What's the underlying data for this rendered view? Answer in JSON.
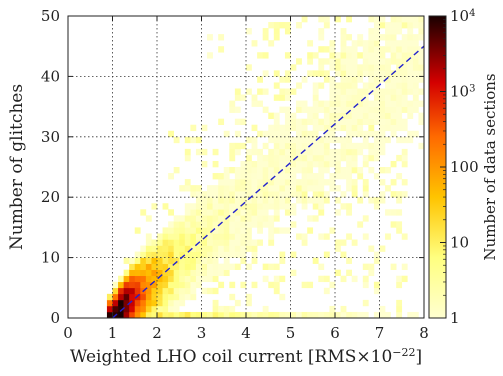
{
  "chart_data": {
    "type": "heatmap",
    "title": "",
    "xlabel": "Weighted LHO coil current [RMS×10",
    "xlabel_exponent": "−22",
    "xlabel_suffix": "]",
    "ylabel": "Number of glitches",
    "xlim": [
      0,
      8
    ],
    "ylim": [
      0,
      50
    ],
    "x_ticks": [
      "0",
      "1",
      "2",
      "3",
      "4",
      "5",
      "6",
      "7",
      "8"
    ],
    "y_ticks": [
      "0",
      "10",
      "20",
      "30",
      "40",
      "50"
    ],
    "grid": true,
    "colorbar": {
      "label": "Number of data sections",
      "scale": "log",
      "range": [
        1,
        10000
      ],
      "tick_labels": [
        {
          "value": 1,
          "base": "1",
          "exp": ""
        },
        {
          "value": 10,
          "base": "10",
          "exp": ""
        },
        {
          "value": 100,
          "base": "100",
          "exp": ""
        },
        {
          "value": 1000,
          "base": "10",
          "exp": "3"
        },
        {
          "value": 10000,
          "base": "10",
          "exp": "4"
        }
      ]
    },
    "fit_line": {
      "style": "dashed",
      "color": "#2222cc",
      "points": [
        [
          1,
          0
        ],
        [
          8,
          45
        ]
      ]
    },
    "density_model": {
      "description_of_shape": "dense core near x≈1.3, y≈1; ridge along fit line; spread grows with x",
      "peak_count": 10000
    },
    "colors": {
      "low": "#ffffa0",
      "mid": "#ff9900",
      "high": "#cc0000",
      "peak": "#200000"
    }
  }
}
